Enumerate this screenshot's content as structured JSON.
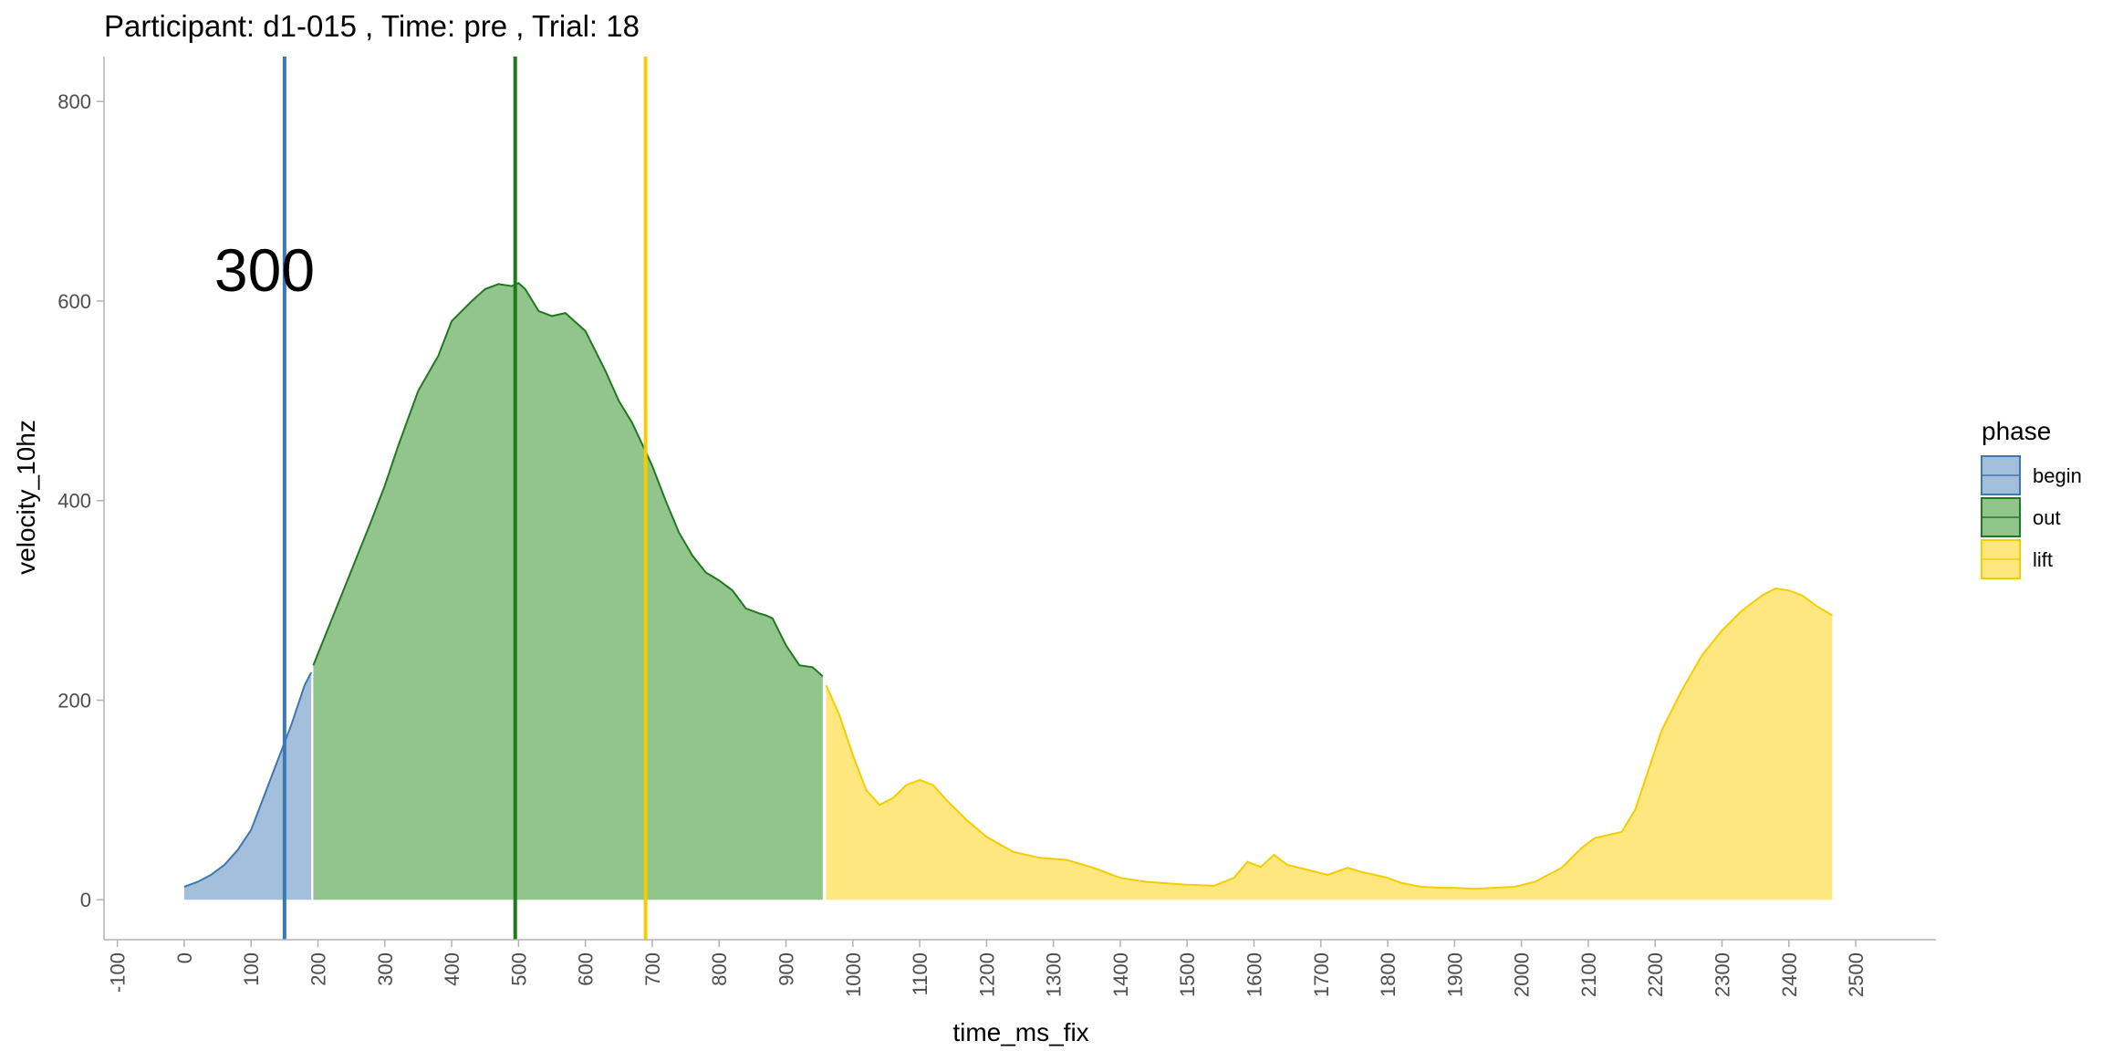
{
  "chart_data": {
    "type": "area",
    "title": "Participant:  d1-015 , Time: pre , Trial:  18",
    "xlabel": "time_ms_fix",
    "ylabel": "velocity_10hz",
    "xlim": [
      -120,
      2620
    ],
    "ylim": [
      -40,
      845
    ],
    "x_ticks": [
      -100,
      0,
      100,
      200,
      300,
      400,
      500,
      600,
      700,
      800,
      900,
      1000,
      1100,
      1200,
      1300,
      1400,
      1500,
      1600,
      1700,
      1800,
      1900,
      2000,
      2100,
      2200,
      2300,
      2400,
      2500
    ],
    "x_tick_labels": [
      "-100",
      "0",
      "100",
      "200",
      "300",
      "400",
      "500",
      "600",
      "700",
      "800",
      "900",
      "1000",
      "1100",
      "1200",
      "1300",
      "1400",
      "1500",
      "1600",
      "1700",
      "1800",
      "1900",
      "2000",
      "2100",
      "2200",
      "2300",
      "2400",
      "2500"
    ],
    "y_ticks": [
      0,
      200,
      400,
      600,
      800
    ],
    "y_tick_labels": [
      "0",
      "200",
      "400",
      "600",
      "800"
    ],
    "x_tick_rotation": "vertical",
    "grid": false,
    "legend": {
      "title": "phase",
      "position": "right",
      "entries": [
        {
          "label": "begin",
          "fill": "#a3bfdc",
          "stroke": "#3c78b4"
        },
        {
          "label": "out",
          "fill": "#92c58c",
          "stroke": "#1f7a1f"
        },
        {
          "label": "lift",
          "fill": "#fee77e",
          "stroke": "#f5cd00"
        }
      ]
    },
    "series": [
      {
        "name": "begin",
        "fill": "#a3bfdc",
        "stroke": "#3c78b4",
        "x": [
          0,
          20,
          40,
          60,
          80,
          100,
          120,
          140,
          160,
          180,
          190
        ],
        "y": [
          13,
          18,
          25,
          35,
          50,
          70,
          105,
          140,
          175,
          215,
          228
        ]
      },
      {
        "name": "out",
        "fill": "#92c58c",
        "stroke": "#1f7a1f",
        "x": [
          193,
          220,
          250,
          280,
          300,
          320,
          350,
          380,
          400,
          430,
          450,
          470,
          490,
          500,
          510,
          530,
          550,
          570,
          600,
          630,
          650,
          670,
          700,
          720,
          740,
          760,
          780,
          800,
          820,
          840,
          860,
          870,
          880,
          900,
          920,
          940,
          955
        ],
        "y": [
          235,
          280,
          330,
          380,
          415,
          455,
          510,
          545,
          580,
          600,
          612,
          617,
          615,
          618,
          612,
          590,
          585,
          588,
          570,
          530,
          500,
          478,
          435,
          400,
          368,
          345,
          328,
          320,
          310,
          292,
          287,
          285,
          282,
          255,
          235,
          233,
          224
        ]
      },
      {
        "name": "lift",
        "fill": "#fee77e",
        "stroke": "#f5cd00",
        "x": [
          960,
          980,
          1000,
          1020,
          1040,
          1060,
          1080,
          1100,
          1120,
          1140,
          1170,
          1200,
          1240,
          1280,
          1320,
          1360,
          1400,
          1440,
          1480,
          1500,
          1540,
          1570,
          1590,
          1610,
          1630,
          1650,
          1680,
          1710,
          1740,
          1760,
          1780,
          1800,
          1820,
          1850,
          1880,
          1900,
          1930,
          1960,
          1990,
          2020,
          2060,
          2090,
          2110,
          2130,
          2150,
          2170,
          2190,
          2210,
          2240,
          2270,
          2300,
          2330,
          2360,
          2380,
          2400,
          2420,
          2440,
          2465
        ],
        "y": [
          215,
          185,
          145,
          110,
          95,
          102,
          115,
          120,
          115,
          100,
          80,
          63,
          48,
          42,
          40,
          32,
          22,
          18,
          16,
          15,
          14,
          22,
          38,
          33,
          45,
          35,
          30,
          25,
          32,
          28,
          25,
          22,
          17,
          13,
          12,
          12,
          11,
          12,
          13,
          18,
          32,
          52,
          62,
          65,
          68,
          90,
          130,
          170,
          210,
          245,
          270,
          290,
          305,
          312,
          310,
          305,
          295,
          285
        ]
      }
    ],
    "vlines": [
      {
        "x": 150,
        "color": "#3c78b4"
      },
      {
        "x": 495,
        "color": "#1f7a1f"
      },
      {
        "x": 690,
        "color": "#f5cd00"
      }
    ],
    "annotation": {
      "text": "300",
      "x": 45,
      "y": 610
    }
  }
}
